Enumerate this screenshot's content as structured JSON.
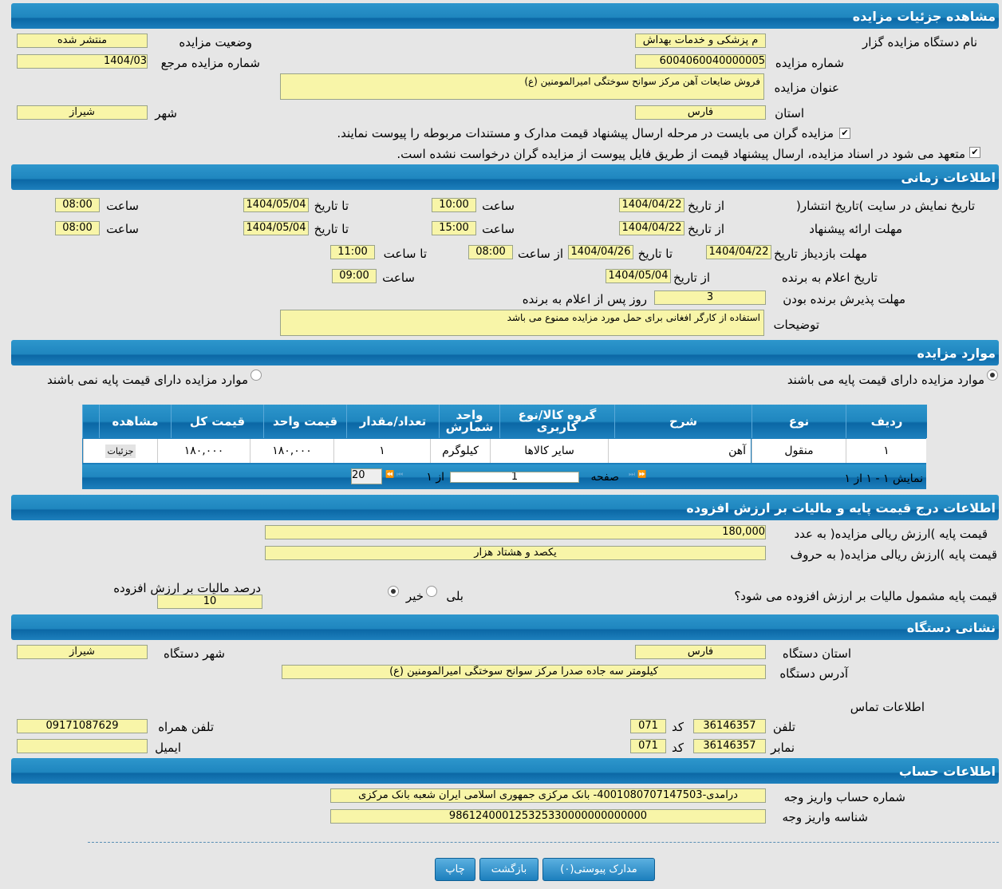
{
  "sections": {
    "details": "مشاهده جزئیات مزایده",
    "time": "اطلاعات زمانی",
    "items": "موارد مزایده",
    "price": "اطلاعات درج قیمت پایه و مالیات بر ارزش افزوده",
    "address": "نشانی دستگاه",
    "account": "اطلاعات حساب"
  },
  "details": {
    "org_label": "نام دستگاه مزایده گزار",
    "org_value": "م پزشکی و خدمات بهداش",
    "status_label": "وضعیت مزایده",
    "status_value": "منتشر شده",
    "number_label": "شماره مزایده",
    "number_value": "6004060040000005",
    "ref_label": "شماره مزایده مرجع",
    "ref_value": "1404/03",
    "title_label": "عنوان مزایده",
    "title_value": "فروش ضایعات آهن مرکز سوانح سوختگی امیرالمومنین (ع)",
    "province_label": "استان",
    "province_value": "فارس",
    "city_label": "شهر",
    "city_value": "شیراز",
    "check1": "مزایده گران می بایست در مرحله ارسال پیشنهاد قیمت مدارک و مستندات مربوطه را پیوست نمایند.",
    "check2": "متعهد می شود در اسناد مزایده، ارسال پیشنهاد قیمت از طریق فایل پیوست از مزایده گران درخواست نشده است."
  },
  "time": {
    "from_date": "از تاریخ",
    "to_date": "تا تاریخ",
    "hour": "ساعت",
    "from_hour": "از ساعت",
    "to_hour": "تا ساعت",
    "publish_label": "تاریخ نمایش در سایت )تاریخ انتشار(",
    "publish_from": "1404/04/22",
    "publish_from_time": "10:00",
    "publish_to": "1404/05/04",
    "publish_to_time": "08:00",
    "offer_label": "مهلت ارائه پیشنهاد",
    "offer_from": "1404/04/22",
    "offer_from_time": "15:00",
    "offer_to": "1404/05/04",
    "offer_to_time": "08:00",
    "visit_label": "مهلت بازدید",
    "visit_from": "1404/04/22",
    "visit_to": "1404/04/26",
    "visit_from_time": "08:00",
    "visit_to_time": "11:00",
    "winner_label": "تاریخ اعلام به برنده",
    "winner_date": "1404/05/04",
    "winner_time": "09:00",
    "accept_label": "مهلت پذیرش برنده بودن",
    "accept_value": "3",
    "accept_suffix": "روز پس از اعلام به برنده",
    "notes_label": "توضیحات",
    "notes_value": "استفاده از کارگر افغانی برای حمل مورد مزایده ممنوع می باشد"
  },
  "items": {
    "radio_with": "موارد مزایده دارای قیمت پایه می باشند",
    "radio_without": "موارد مزایده دارای قیمت پایه نمی باشند",
    "columns": [
      "ردیف",
      "نوع",
      "شرح",
      "گروه کالا/نوع کاربری",
      "واحد شمارش",
      "تعداد/مقدار",
      "قیمت واحد",
      "قیمت کل",
      "مشاهده"
    ],
    "rows": [
      {
        "row": "۱",
        "type": "منقول",
        "desc": "آهن",
        "group": "سایر کالاها",
        "unit": "کیلوگرم",
        "qty": "۱",
        "unit_price": "۱۸۰,۰۰۰",
        "total": "۱۸۰,۰۰۰",
        "view": "جزئیات"
      }
    ],
    "pager": {
      "summary": "نمایش ۱ - ۱ از ۱",
      "page_label": "صفحه",
      "page": "1",
      "of": "از ۱",
      "page_size": "20"
    }
  },
  "price": {
    "number_label": "قیمت پایه )ارزش ریالی مزایده( به عدد",
    "number_value": "180,000",
    "words_label": "قیمت پایه )ارزش ریالی مزایده( به حروف",
    "words_value": "یکصد و هشتاد هزار",
    "vat_question": "قیمت پایه مشمول مالیات بر ارزش افزوده می شود؟",
    "yes": "بلی",
    "no": "خیر",
    "vat_label": "درصد مالیات بر ارزش افزوده",
    "vat_value": "10"
  },
  "address": {
    "province_label": "استان دستگاه",
    "province_value": "فارس",
    "city_label": "شهر دستگاه",
    "city_value": "شیراز",
    "addr_label": "آدرس دستگاه",
    "addr_value": "کیلومتر سه جاده صدرا مرکز سوانح سوختگی امیرالمومنین (ع)",
    "contact": "اطلاعات تماس",
    "phone_label": "تلفن",
    "phone": "36146357",
    "code_label": "کد",
    "code": "071",
    "fax_label": "نمابر",
    "fax": "36146357",
    "fax_code": "071",
    "mobile_label": "تلفن همراه",
    "mobile": "09171087629",
    "email_label": "ایمیل",
    "email": ""
  },
  "account": {
    "acc_label": "شماره حساب واریز وجه",
    "acc_value": "درآمدی-4001080707147503- بانک مرکزی جمهوری اسلامی ایران شعبه بانک مرکزی",
    "id_label": "شناسه واریز وجه",
    "id_value": "986124000125325330000000000000"
  },
  "buttons": {
    "attachments": "مدارک پیوستی(۰)",
    "back": "بازگشت",
    "print": "چاپ"
  }
}
